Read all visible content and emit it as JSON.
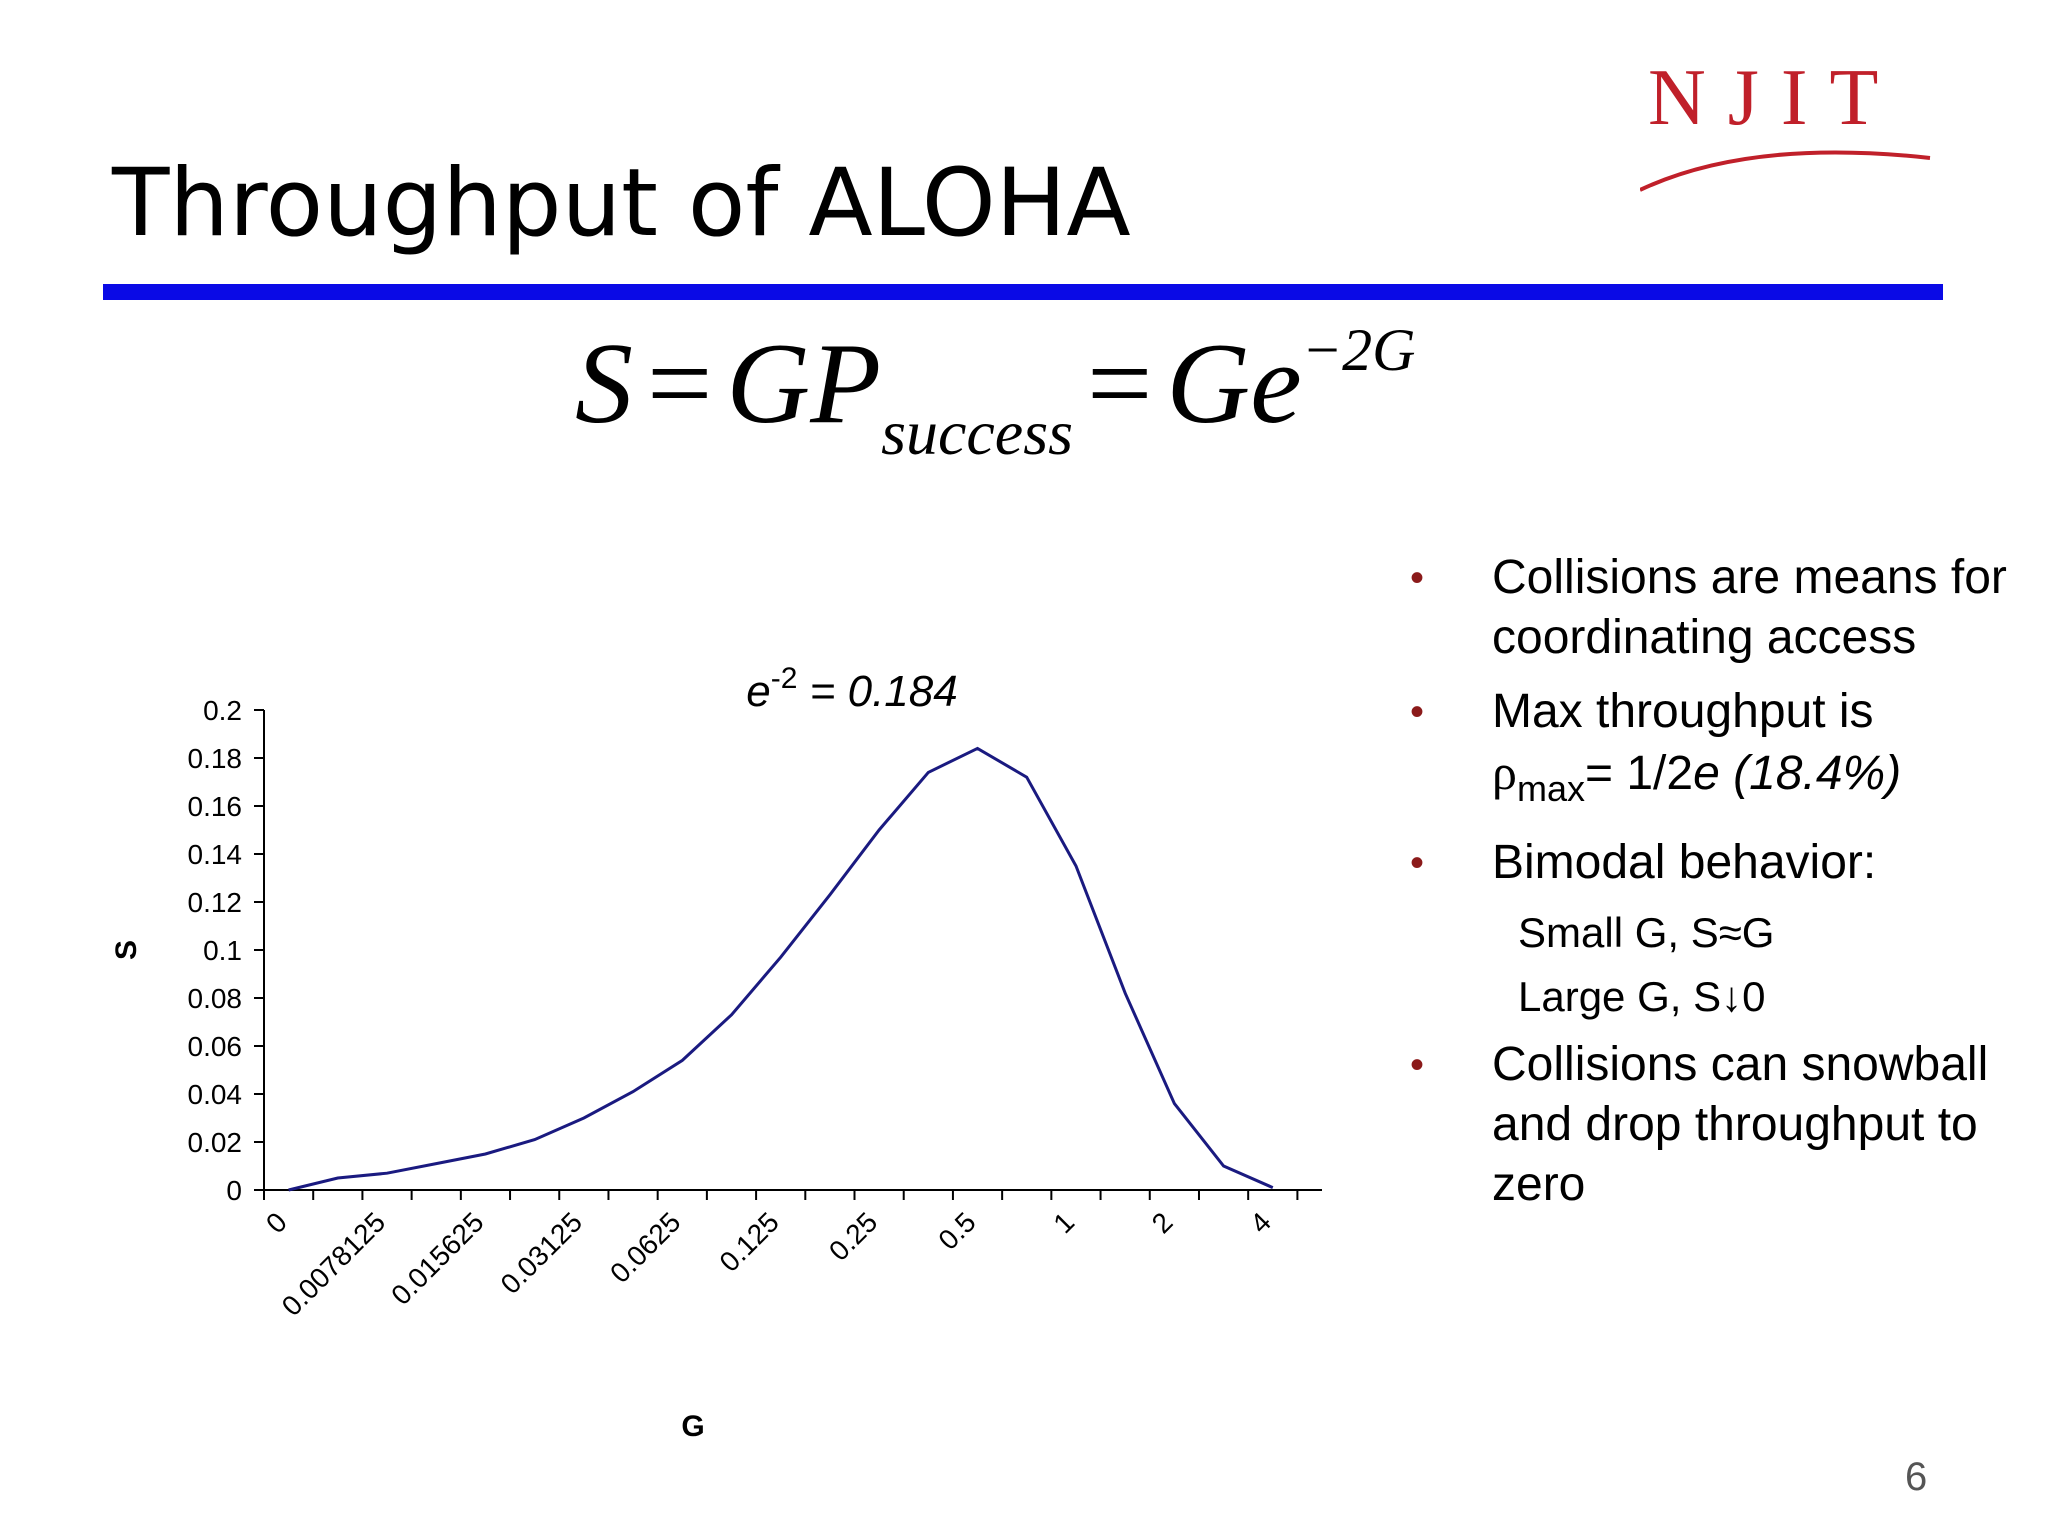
{
  "slide": {
    "title": "Throughput of ALOHA",
    "logo_text": "NJIT",
    "page_number": "6",
    "formula": {
      "lhs": "S",
      "eq": "=",
      "mid": "GP",
      "mid_sub": "success",
      "rhs": "Ge",
      "rhs_sup": "−2G"
    },
    "bullets": [
      {
        "text": "Collisions are means for coordinating access"
      },
      {
        "prefix": "Max throughput is ",
        "rho": "ρ",
        "rho_sub": "max",
        "eq": "= 1/2",
        "e": "e",
        "pct": " (18.4%)"
      },
      {
        "text": "Bimodal behavior:"
      },
      {
        "text": "Collisions can snowball and drop throughput to zero"
      }
    ],
    "sub_bullets": [
      "Small G, S≈G",
      "Large G, S↓0"
    ],
    "colors": {
      "accent_rule": "#0a0ae6",
      "bullet": "#8b1a1a",
      "logo": "#c0202a",
      "series": "#1a1a80"
    }
  },
  "chart_data": {
    "type": "line",
    "xlabel": "G",
    "ylabel": "S",
    "ylim": [
      0,
      0.2
    ],
    "y_ticks": [
      0,
      0.02,
      0.04,
      0.06,
      0.08,
      0.1,
      0.12,
      0.14,
      0.16,
      0.18,
      0.2
    ],
    "x_tick_labels": [
      "0",
      "0.0078125",
      "0.015625",
      "0.03125",
      "0.0625",
      "0.125",
      "0.25",
      "0.5",
      "1",
      "2",
      "4"
    ],
    "annotation": {
      "base": "e",
      "exp": "-2",
      "text": " = 0.184"
    },
    "series": [
      {
        "values": [
          0,
          0.005,
          0.007,
          0.011,
          0.015,
          0.021,
          0.03,
          0.041,
          0.054,
          0.073,
          0.097,
          0.123,
          0.15,
          0.174,
          0.184,
          0.172,
          0.135,
          0.082,
          0.036,
          0.01,
          0.001
        ]
      }
    ]
  }
}
